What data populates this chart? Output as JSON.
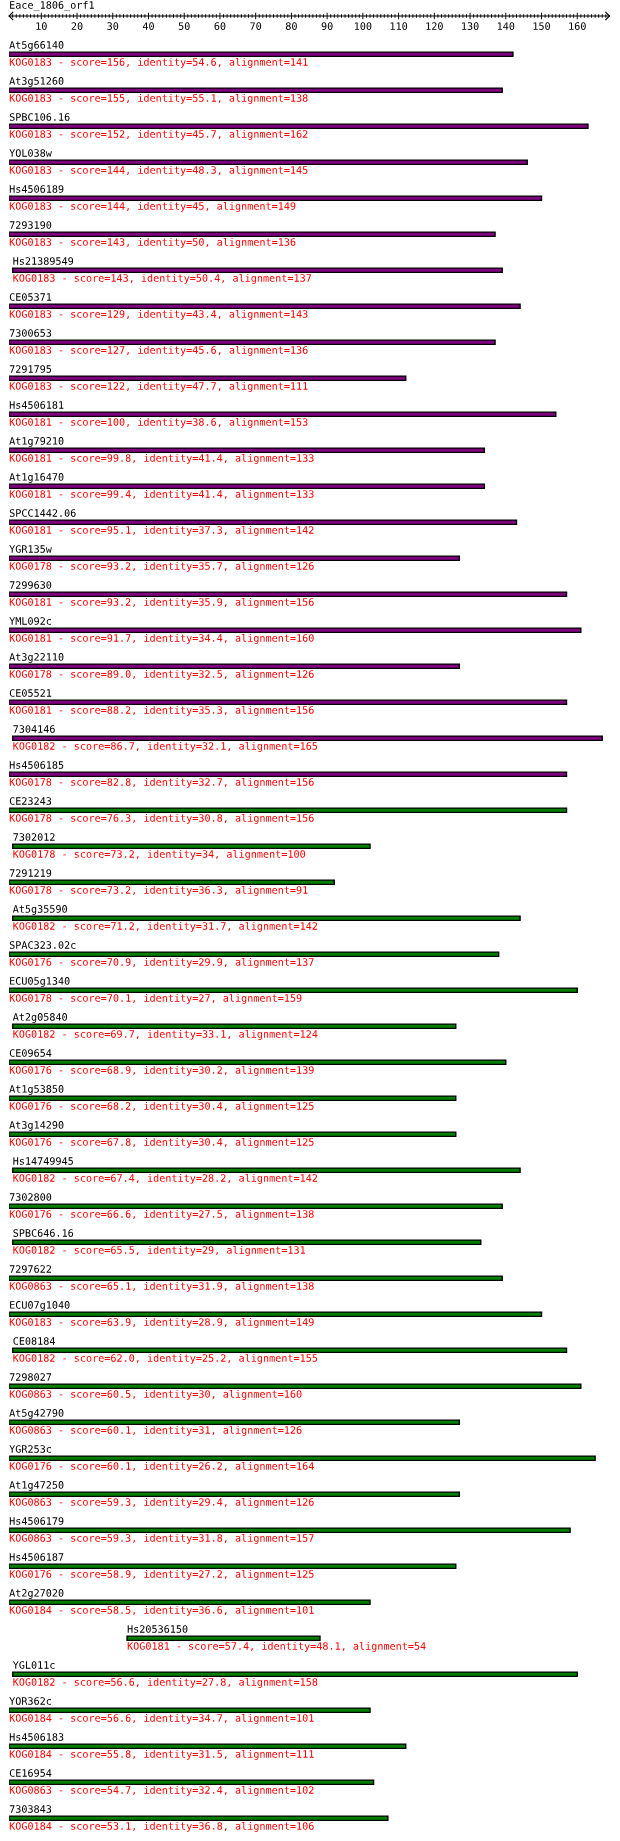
{
  "chart_data": {
    "type": "bar",
    "orientation": "horizontal",
    "title": "Eace_1806_orf1",
    "categories": [
      "At5g66140",
      "At3g51260",
      "SPBC106.16",
      "YOL038w",
      "Hs4506189",
      "7293190",
      "Hs21389549",
      "CE05371",
      "7300653",
      "7291795",
      "Hs4506181",
      "At1g79210",
      "At1g16470",
      "SPCC1442.06",
      "YGR135w",
      "7299630",
      "YML092c",
      "At3g22110",
      "CE05521",
      "7304146",
      "Hs4506185",
      "CE23243",
      "7302012",
      "7291219",
      "At5g35590",
      "SPAC323.02c",
      "ECU05g1340",
      "At2g05840",
      "CE09654",
      "At1g53850",
      "At3g14290",
      "Hs14749945",
      "7302800",
      "SPBC646.16",
      "7297622",
      "ECU07g1040",
      "CE08184",
      "7298027",
      "At5g42790",
      "YGR253c",
      "At1g47250",
      "Hs4506179",
      "Hs4506187",
      "At2g27020",
      "Hs20536150",
      "YGL011c",
      "YOR362c",
      "Hs4506183",
      "CE16954",
      "7303843"
    ],
    "base": [
      1,
      1,
      1,
      1,
      1,
      1,
      2,
      1,
      1,
      1,
      1,
      1,
      1,
      1,
      1,
      1,
      1,
      1,
      1,
      2,
      1,
      1,
      2,
      1,
      2,
      1,
      1,
      2,
      1,
      1,
      1,
      2,
      1,
      2,
      1,
      1,
      2,
      1,
      1,
      1,
      1,
      1,
      1,
      1,
      34,
      2,
      1,
      1,
      1,
      1
    ],
    "values": [
      141,
      138,
      162,
      145,
      149,
      136,
      137,
      143,
      136,
      111,
      153,
      133,
      133,
      142,
      126,
      156,
      160,
      126,
      156,
      165,
      156,
      156,
      100,
      91,
      142,
      137,
      159,
      124,
      139,
      125,
      125,
      142,
      138,
      131,
      138,
      149,
      155,
      160,
      126,
      164,
      126,
      157,
      125,
      101,
      54,
      158,
      101,
      111,
      102,
      106
    ],
    "colors": [
      "#800080",
      "#800080",
      "#800080",
      "#800080",
      "#800080",
      "#800080",
      "#800080",
      "#800080",
      "#800080",
      "#800080",
      "#800080",
      "#800080",
      "#800080",
      "#800080",
      "#800080",
      "#800080",
      "#800080",
      "#800080",
      "#800080",
      "#800080",
      "#800080",
      "#008000",
      "#008000",
      "#008000",
      "#008000",
      "#008000",
      "#008000",
      "#008000",
      "#008000",
      "#008000",
      "#008000",
      "#008000",
      "#008000",
      "#008000",
      "#008000",
      "#008000",
      "#008000",
      "#008000",
      "#008000",
      "#008000",
      "#008000",
      "#008000",
      "#008000",
      "#008000",
      "#008000",
      "#008000",
      "#008000",
      "#008000",
      "#008000",
      "#008000"
    ],
    "value_labels": [
      "KOG0183 - score=156, identity=54.6, alignment=141",
      "KOG0183 - score=155, identity=55.1, alignment=138",
      "KOG0183 - score=152, identity=45.7, alignment=162",
      "KOG0183 - score=144, identity=48.3, alignment=145",
      "KOG0183 - score=144, identity=45, alignment=149",
      "KOG0183 - score=143, identity=50, alignment=136",
      "KOG0183 - score=143, identity=50.4, alignment=137",
      "KOG0183 - score=129, identity=43.4, alignment=143",
      "KOG0183 - score=127, identity=45.6, alignment=136",
      "KOG0183 - score=122, identity=47.7, alignment=111",
      "KOG0181 - score=100, identity=38.6, alignment=153",
      "KOG0181 - score=99.8, identity=41.4, alignment=133",
      "KOG0181 - score=99.4, identity=41.4, alignment=133",
      "KOG0181 - score=95.1, identity=37.3, alignment=142",
      "KOG0178 - score=93.2, identity=35.7, alignment=126",
      "KOG0181 - score=93.2, identity=35.9, alignment=156",
      "KOG0181 - score=91.7, identity=34.4, alignment=160",
      "KOG0178 - score=89.0, identity=32.5, alignment=126",
      "KOG0181 - score=88.2, identity=35.3, alignment=156",
      "KOG0182 - score=86.7, identity=32.1, alignment=165",
      "KOG0178 - score=82.8, identity=32.7, alignment=156",
      "KOG0178 - score=76.3, identity=30.8, alignment=156",
      "KOG0178 - score=73.2, identity=34, alignment=100",
      "KOG0178 - score=73.2, identity=36.3, alignment=91",
      "KOG0182 - score=71.2, identity=31.7, alignment=142",
      "KOG0176 - score=70.9, identity=29.9, alignment=137",
      "KOG0178 - score=70.1, identity=27, alignment=159",
      "KOG0182 - score=69.7, identity=33.1, alignment=124",
      "KOG0176 - score=68.9, identity=30.2, alignment=139",
      "KOG0176 - score=68.2, identity=30.4, alignment=125",
      "KOG0176 - score=67.8, identity=30.4, alignment=125",
      "KOG0182 - score=67.4, identity=28.2, alignment=142",
      "KOG0176 - score=66.6, identity=27.5, alignment=138",
      "KOG0182 - score=65.5, identity=29, alignment=131",
      "KOG0863 - score=65.1, identity=31.9, alignment=138",
      "KOG0183 - score=63.9, identity=28.9, alignment=149",
      "KOG0182 - score=62.0, identity=25.2, alignment=155",
      "KOG0863 - score=60.5, identity=30, alignment=160",
      "KOG0863 - score=60.1, identity=31, alignment=126",
      "KOG0176 - score=60.1, identity=26.2, alignment=164",
      "KOG0863 - score=59.3, identity=29.4, alignment=126",
      "KOG0863 - score=59.3, identity=31.8, alignment=157",
      "KOG0176 - score=58.9, identity=27.2, alignment=125",
      "KOG0184 - score=58.5, identity=36.6, alignment=101",
      "KOG0181 - score=57.4, identity=48.1, alignment=54",
      "KOG0182 - score=56.6, identity=27.8, alignment=158",
      "KOG0184 - score=56.6, identity=34.7, alignment=101",
      "KOG0184 - score=55.8, identity=31.5, alignment=111",
      "KOG0863 - score=54.7, identity=32.4, alignment=102",
      "KOG0184 - score=53.1, identity=36.8, alignment=106"
    ],
    "xlim": [
      1,
      169
    ],
    "xticks": [
      {
        "value": 2,
        "label": null
      },
      {
        "value": 3,
        "label": null
      },
      {
        "value": 4,
        "label": null
      },
      {
        "value": 5,
        "label": null
      },
      {
        "value": 6,
        "label": null
      },
      {
        "value": 7,
        "label": null
      },
      {
        "value": 8,
        "label": null
      },
      {
        "value": 9,
        "label": null
      },
      10,
      {
        "value": 11,
        "label": null
      },
      {
        "value": 12,
        "label": null
      },
      {
        "value": 13,
        "label": null
      },
      {
        "value": 14,
        "label": null
      },
      {
        "value": 15,
        "label": null
      },
      {
        "value": 16,
        "label": null
      },
      {
        "value": 17,
        "label": null
      },
      {
        "value": 18,
        "label": null
      },
      {
        "value": 19,
        "label": null
      },
      20,
      {
        "value": 21,
        "label": null
      },
      {
        "value": 22,
        "label": null
      },
      {
        "value": 23,
        "label": null
      },
      {
        "value": 24,
        "label": null
      },
      {
        "value": 25,
        "label": null
      },
      {
        "value": 26,
        "label": null
      },
      {
        "value": 27,
        "label": null
      },
      {
        "value": 28,
        "label": null
      },
      {
        "value": 29,
        "label": null
      },
      30,
      {
        "value": 31,
        "label": null
      },
      {
        "value": 32,
        "label": null
      },
      {
        "value": 33,
        "label": null
      },
      {
        "value": 34,
        "label": null
      },
      {
        "value": 35,
        "label": null
      },
      {
        "value": 36,
        "label": null
      },
      {
        "value": 37,
        "label": null
      },
      {
        "value": 38,
        "label": null
      },
      {
        "value": 39,
        "label": null
      },
      40,
      {
        "value": 41,
        "label": null
      },
      {
        "value": 42,
        "label": null
      },
      {
        "value": 43,
        "label": null
      },
      {
        "value": 44,
        "label": null
      },
      {
        "value": 45,
        "label": null
      },
      {
        "value": 46,
        "label": null
      },
      {
        "value": 47,
        "label": null
      },
      {
        "value": 48,
        "label": null
      },
      {
        "value": 49,
        "label": null
      },
      50,
      {
        "value": 51,
        "label": null
      },
      {
        "value": 52,
        "label": null
      },
      {
        "value": 53,
        "label": null
      },
      {
        "value": 54,
        "label": null
      },
      {
        "value": 55,
        "label": null
      },
      {
        "value": 56,
        "label": null
      },
      {
        "value": 57,
        "label": null
      },
      {
        "value": 58,
        "label": null
      },
      {
        "value": 59,
        "label": null
      },
      60,
      {
        "value": 61,
        "label": null
      },
      {
        "value": 62,
        "label": null
      },
      {
        "value": 63,
        "label": null
      },
      {
        "value": 64,
        "label": null
      },
      {
        "value": 65,
        "label": null
      },
      {
        "value": 66,
        "label": null
      },
      {
        "value": 67,
        "label": null
      },
      {
        "value": 68,
        "label": null
      },
      {
        "value": 69,
        "label": null
      },
      70,
      {
        "value": 71,
        "label": null
      },
      {
        "value": 72,
        "label": null
      },
      {
        "value": 73,
        "label": null
      },
      {
        "value": 74,
        "label": null
      },
      {
        "value": 75,
        "label": null
      },
      {
        "value": 76,
        "label": null
      },
      {
        "value": 77,
        "label": null
      },
      {
        "value": 78,
        "label": null
      },
      {
        "value": 79,
        "label": null
      },
      80,
      {
        "value": 81,
        "label": null
      },
      {
        "value": 82,
        "label": null
      },
      {
        "value": 83,
        "label": null
      },
      {
        "value": 84,
        "label": null
      },
      {
        "value": 85,
        "label": null
      },
      {
        "value": 86,
        "label": null
      },
      {
        "value": 87,
        "label": null
      },
      {
        "value": 88,
        "label": null
      },
      {
        "value": 89,
        "label": null
      },
      90,
      {
        "value": 91,
        "label": null
      },
      {
        "value": 92,
        "label": null
      },
      {
        "value": 93,
        "label": null
      },
      {
        "value": 94,
        "label": null
      },
      {
        "value": 95,
        "label": null
      },
      {
        "value": 96,
        "label": null
      },
      {
        "value": 97,
        "label": null
      },
      {
        "value": 98,
        "label": null
      },
      {
        "value": 99,
        "label": null
      },
      100,
      {
        "value": 101,
        "label": null
      },
      {
        "value": 102,
        "label": null
      },
      {
        "value": 103,
        "label": null
      },
      {
        "value": 104,
        "label": null
      },
      {
        "value": 105,
        "label": null
      },
      {
        "value": 106,
        "label": null
      },
      {
        "value": 107,
        "label": null
      },
      {
        "value": 108,
        "label": null
      },
      {
        "value": 109,
        "label": null
      },
      110,
      {
        "value": 111,
        "label": null
      },
      {
        "value": 112,
        "label": null
      },
      {
        "value": 113,
        "label": null
      },
      {
        "value": 114,
        "label": null
      },
      {
        "value": 115,
        "label": null
      },
      {
        "value": 116,
        "label": null
      },
      {
        "value": 117,
        "label": null
      },
      {
        "value": 118,
        "label": null
      },
      {
        "value": 119,
        "label": null
      },
      120,
      {
        "value": 121,
        "label": null
      },
      {
        "value": 122,
        "label": null
      },
      {
        "value": 123,
        "label": null
      },
      {
        "value": 124,
        "label": null
      },
      {
        "value": 125,
        "label": null
      },
      {
        "value": 126,
        "label": null
      },
      {
        "value": 127,
        "label": null
      },
      {
        "value": 128,
        "label": null
      },
      {
        "value": 129,
        "label": null
      },
      130,
      {
        "value": 131,
        "label": null
      },
      {
        "value": 132,
        "label": null
      },
      {
        "value": 133,
        "label": null
      },
      {
        "value": 134,
        "label": null
      },
      {
        "value": 135,
        "label": null
      },
      {
        "value": 136,
        "label": null
      },
      {
        "value": 137,
        "label": null
      },
      {
        "value": 138,
        "label": null
      },
      {
        "value": 139,
        "label": null
      },
      140,
      {
        "value": 141,
        "label": null
      },
      {
        "value": 142,
        "label": null
      },
      {
        "value": 143,
        "label": null
      },
      {
        "value": 144,
        "label": null
      },
      {
        "value": 145,
        "label": null
      },
      {
        "value": 146,
        "label": null
      },
      {
        "value": 147,
        "label": null
      },
      {
        "value": 148,
        "label": null
      },
      {
        "value": 149,
        "label": null
      },
      150,
      {
        "value": 151,
        "label": null
      },
      {
        "value": 152,
        "label": null
      },
      {
        "value": 153,
        "label": null
      },
      {
        "value": 154,
        "label": null
      },
      {
        "value": 155,
        "label": null
      },
      {
        "value": 156,
        "label": null
      },
      {
        "value": 157,
        "label": null
      },
      {
        "value": 158,
        "label": null
      },
      {
        "value": 159,
        "label": null
      },
      160,
      {
        "value": 161,
        "label": null
      },
      {
        "value": 162,
        "label": null
      },
      {
        "value": 163,
        "label": null
      },
      {
        "value": 164,
        "label": null
      },
      {
        "value": 165,
        "label": null
      },
      {
        "value": 166,
        "label": null
      },
      {
        "value": 167,
        "label": null
      },
      {
        "value": 168,
        "label": null
      }
    ]
  }
}
